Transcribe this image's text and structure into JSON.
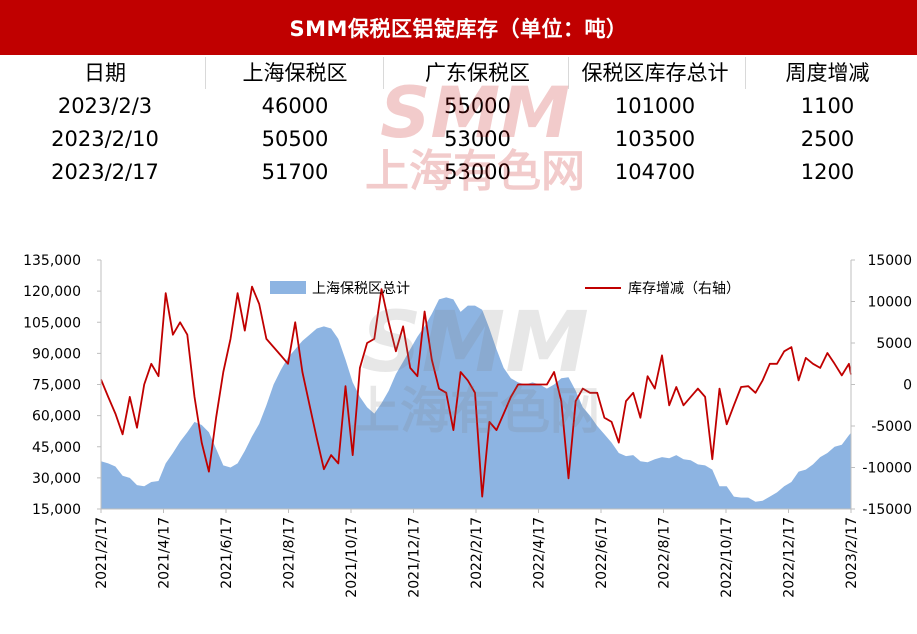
{
  "header": {
    "title": "SMM保税区铝锭库存（单位：吨）"
  },
  "table": {
    "columns": [
      "日期",
      "上海保税区",
      "广东保税区",
      "保税区库存总计",
      "周度增减"
    ],
    "rows": [
      [
        "2023/2/3",
        "46000",
        "55000",
        "101000",
        "1100"
      ],
      [
        "2023/2/10",
        "50500",
        "53000",
        "103500",
        "2500"
      ],
      [
        "2023/2/17",
        "51700",
        "53000",
        "104700",
        "1200"
      ]
    ]
  },
  "watermark": {
    "logo": "SMM",
    "text": "上海有色网"
  },
  "colors": {
    "title_bg": "#c00000",
    "area": "#8db4e2",
    "line": "#c00000"
  },
  "chart_data": {
    "type": "area+line",
    "x_tick_labels": [
      "2021/2/17",
      "2021/4/17",
      "2021/6/17",
      "2021/8/17",
      "2021/10/17",
      "2021/12/17",
      "2022/2/17",
      "2022/4/17",
      "2022/6/17",
      "2022/8/17",
      "2022/10/17",
      "2022/12/17",
      "2023/2/17"
    ],
    "x_range": [
      "2021-02-17",
      "2023-02-17"
    ],
    "left_axis": {
      "ticks": [
        "15,000",
        "30,000",
        "45,000",
        "60,000",
        "75,000",
        "90,000",
        "105,000",
        "120,000",
        "135,000"
      ],
      "ylim": [
        15000,
        135000
      ]
    },
    "right_axis": {
      "ticks": [
        "-15000",
        "-10000",
        "-5000",
        "0",
        "5000",
        "10000",
        "15000"
      ],
      "ylim": [
        -15000,
        15000
      ]
    },
    "legend_position": "top",
    "grid": false,
    "series": [
      {
        "name": "上海保税区总计",
        "type": "area",
        "axis": "left",
        "points": [
          [
            "2021-02-17",
            38000
          ],
          [
            "2021-02-24",
            37000
          ],
          [
            "2021-03-03",
            35500
          ],
          [
            "2021-03-10",
            31000
          ],
          [
            "2021-03-17",
            30000
          ],
          [
            "2021-03-24",
            26500
          ],
          [
            "2021-03-31",
            26000
          ],
          [
            "2021-04-07",
            28000
          ],
          [
            "2021-04-14",
            28500
          ],
          [
            "2021-04-21",
            37000
          ],
          [
            "2021-04-28",
            42000
          ],
          [
            "2021-05-05",
            47500
          ],
          [
            "2021-05-12",
            52000
          ],
          [
            "2021-05-19",
            57000
          ],
          [
            "2021-05-26",
            55500
          ],
          [
            "2021-06-02",
            52000
          ],
          [
            "2021-06-09",
            44000
          ],
          [
            "2021-06-16",
            36000
          ],
          [
            "2021-06-23",
            35000
          ],
          [
            "2021-06-30",
            37000
          ],
          [
            "2021-07-07",
            43000
          ],
          [
            "2021-07-14",
            50000
          ],
          [
            "2021-07-21",
            56000
          ],
          [
            "2021-07-28",
            65000
          ],
          [
            "2021-08-04",
            75000
          ],
          [
            "2021-08-11",
            82000
          ],
          [
            "2021-08-18",
            88000
          ],
          [
            "2021-08-25",
            92000
          ],
          [
            "2021-09-01",
            96000
          ],
          [
            "2021-09-08",
            99000
          ],
          [
            "2021-09-15",
            102000
          ],
          [
            "2021-09-22",
            103000
          ],
          [
            "2021-09-29",
            102000
          ],
          [
            "2021-10-06",
            97000
          ],
          [
            "2021-10-13",
            87000
          ],
          [
            "2021-10-20",
            76000
          ],
          [
            "2021-10-27",
            69000
          ],
          [
            "2021-11-03",
            64000
          ],
          [
            "2021-11-10",
            61000
          ],
          [
            "2021-11-17",
            66000
          ],
          [
            "2021-11-24",
            72000
          ],
          [
            "2021-12-01",
            80000
          ],
          [
            "2021-12-08",
            86000
          ],
          [
            "2021-12-15",
            92000
          ],
          [
            "2021-12-22",
            98000
          ],
          [
            "2021-12-29",
            103000
          ],
          [
            "2022-01-05",
            109000
          ],
          [
            "2022-01-12",
            116000
          ],
          [
            "2022-01-19",
            117000
          ],
          [
            "2022-01-26",
            116000
          ],
          [
            "2022-02-02",
            110000
          ],
          [
            "2022-02-09",
            113000
          ],
          [
            "2022-02-16",
            113000
          ],
          [
            "2022-02-23",
            111000
          ],
          [
            "2022-03-02",
            102000
          ],
          [
            "2022-03-09",
            92000
          ],
          [
            "2022-03-16",
            83000
          ],
          [
            "2022-03-23",
            78000
          ],
          [
            "2022-03-30",
            76000
          ],
          [
            "2022-04-06",
            75000
          ],
          [
            "2022-04-13",
            76000
          ],
          [
            "2022-04-20",
            75000
          ],
          [
            "2022-04-27",
            73000
          ],
          [
            "2022-05-04",
            75000
          ],
          [
            "2022-05-11",
            78000
          ],
          [
            "2022-05-18",
            78500
          ],
          [
            "2022-05-25",
            72000
          ],
          [
            "2022-06-01",
            64000
          ],
          [
            "2022-06-08",
            60000
          ],
          [
            "2022-06-15",
            55000
          ],
          [
            "2022-06-22",
            51000
          ],
          [
            "2022-06-29",
            47000
          ],
          [
            "2022-07-06",
            42000
          ],
          [
            "2022-07-13",
            40500
          ],
          [
            "2022-07-20",
            41000
          ],
          [
            "2022-07-27",
            38000
          ],
          [
            "2022-08-03",
            37500
          ],
          [
            "2022-08-10",
            39000
          ],
          [
            "2022-08-17",
            40000
          ],
          [
            "2022-08-24",
            39500
          ],
          [
            "2022-08-31",
            41000
          ],
          [
            "2022-09-07",
            39000
          ],
          [
            "2022-09-14",
            38500
          ],
          [
            "2022-09-21",
            36500
          ],
          [
            "2022-09-28",
            36000
          ],
          [
            "2022-10-05",
            34000
          ],
          [
            "2022-10-12",
            26000
          ],
          [
            "2022-10-19",
            26000
          ],
          [
            "2022-10-26",
            21000
          ],
          [
            "2022-11-02",
            20500
          ],
          [
            "2022-11-09",
            20500
          ],
          [
            "2022-11-16",
            18500
          ],
          [
            "2022-11-23",
            19000
          ],
          [
            "2022-11-30",
            21000
          ],
          [
            "2022-12-07",
            23000
          ],
          [
            "2022-12-14",
            26000
          ],
          [
            "2022-12-21",
            28000
          ],
          [
            "2022-12-28",
            33000
          ],
          [
            "2023-01-04",
            34000
          ],
          [
            "2023-01-11",
            36500
          ],
          [
            "2023-01-18",
            40000
          ],
          [
            "2023-01-25",
            42000
          ],
          [
            "2023-02-01",
            45000
          ],
          [
            "2023-02-08",
            46000
          ],
          [
            "2023-02-15",
            50500
          ],
          [
            "2023-02-17",
            51700
          ]
        ]
      },
      {
        "name": "库存增减（右轴）",
        "type": "line",
        "axis": "right",
        "points": [
          [
            "2021-02-17",
            600
          ],
          [
            "2021-02-24",
            -1500
          ],
          [
            "2021-03-03",
            -3500
          ],
          [
            "2021-03-10",
            -6000
          ],
          [
            "2021-03-17",
            -1500
          ],
          [
            "2021-03-24",
            -5200
          ],
          [
            "2021-03-31",
            0
          ],
          [
            "2021-04-07",
            2500
          ],
          [
            "2021-04-14",
            1000
          ],
          [
            "2021-04-21",
            11000
          ],
          [
            "2021-04-28",
            6000
          ],
          [
            "2021-05-05",
            7500
          ],
          [
            "2021-05-12",
            6000
          ],
          [
            "2021-05-19",
            -1500
          ],
          [
            "2021-05-26",
            -7000
          ],
          [
            "2021-06-02",
            -10500
          ],
          [
            "2021-06-09",
            -4000
          ],
          [
            "2021-06-16",
            1500
          ],
          [
            "2021-06-23",
            5500
          ],
          [
            "2021-06-30",
            11000
          ],
          [
            "2021-07-07",
            6500
          ],
          [
            "2021-07-14",
            11800
          ],
          [
            "2021-07-21",
            9700
          ],
          [
            "2021-07-28",
            5500
          ],
          [
            "2021-08-04",
            4500
          ],
          [
            "2021-08-11",
            3500
          ],
          [
            "2021-08-18",
            2500
          ],
          [
            "2021-08-25",
            7500
          ],
          [
            "2021-09-01",
            1500
          ],
          [
            "2021-09-08",
            -2500
          ],
          [
            "2021-09-15",
            -6500
          ],
          [
            "2021-09-22",
            -10200
          ],
          [
            "2021-09-29",
            -8500
          ],
          [
            "2021-10-06",
            -9500
          ],
          [
            "2021-10-13",
            -200
          ],
          [
            "2021-10-20",
            -8500
          ],
          [
            "2021-10-27",
            2000
          ],
          [
            "2021-11-03",
            5000
          ],
          [
            "2021-11-10",
            5500
          ],
          [
            "2021-11-17",
            11500
          ],
          [
            "2021-11-24",
            7500
          ],
          [
            "2021-12-01",
            4000
          ],
          [
            "2021-12-08",
            7000
          ],
          [
            "2021-12-15",
            2000
          ],
          [
            "2021-12-22",
            1000
          ],
          [
            "2021-12-29",
            8800
          ],
          [
            "2022-01-05",
            3000
          ],
          [
            "2022-01-12",
            -500
          ],
          [
            "2022-01-19",
            -1000
          ],
          [
            "2022-01-26",
            -5500
          ],
          [
            "2022-02-02",
            1500
          ],
          [
            "2022-02-09",
            500
          ],
          [
            "2022-02-16",
            -1000
          ],
          [
            "2022-02-23",
            -13500
          ],
          [
            "2022-03-02",
            -4500
          ],
          [
            "2022-03-09",
            -5500
          ],
          [
            "2022-03-16",
            -3500
          ],
          [
            "2022-03-23",
            -1500
          ],
          [
            "2022-03-30",
            0
          ],
          [
            "2022-04-06",
            0
          ],
          [
            "2022-04-13",
            0
          ],
          [
            "2022-04-20",
            0
          ],
          [
            "2022-04-27",
            0
          ],
          [
            "2022-05-04",
            1500
          ],
          [
            "2022-05-11",
            -2000
          ],
          [
            "2022-05-18",
            -11300
          ],
          [
            "2022-05-25",
            -2000
          ],
          [
            "2022-06-01",
            -500
          ],
          [
            "2022-06-08",
            -1000
          ],
          [
            "2022-06-15",
            -1000
          ],
          [
            "2022-06-22",
            -4000
          ],
          [
            "2022-06-29",
            -4500
          ],
          [
            "2022-07-06",
            -7000
          ],
          [
            "2022-07-13",
            -2000
          ],
          [
            "2022-07-20",
            -1000
          ],
          [
            "2022-07-27",
            -4000
          ],
          [
            "2022-08-03",
            1000
          ],
          [
            "2022-08-10",
            -500
          ],
          [
            "2022-08-17",
            3500
          ],
          [
            "2022-08-24",
            -2500
          ],
          [
            "2022-08-31",
            -300
          ],
          [
            "2022-09-07",
            -2500
          ],
          [
            "2022-09-14",
            -1500
          ],
          [
            "2022-09-21",
            -500
          ],
          [
            "2022-09-28",
            -1500
          ],
          [
            "2022-10-05",
            -9000
          ],
          [
            "2022-10-12",
            -500
          ],
          [
            "2022-10-19",
            -4800
          ],
          [
            "2022-10-26",
            -2500
          ],
          [
            "2022-11-02",
            -300
          ],
          [
            "2022-11-09",
            -200
          ],
          [
            "2022-11-16",
            -1000
          ],
          [
            "2022-11-23",
            500
          ],
          [
            "2022-11-30",
            2500
          ],
          [
            "2022-12-07",
            2500
          ],
          [
            "2022-12-14",
            4000
          ],
          [
            "2022-12-21",
            4500
          ],
          [
            "2022-12-28",
            500
          ],
          [
            "2023-01-04",
            3200
          ],
          [
            "2023-01-11",
            2500
          ],
          [
            "2023-01-18",
            2000
          ],
          [
            "2023-01-25",
            3800
          ],
          [
            "2023-02-01",
            2500
          ],
          [
            "2023-02-08",
            1100
          ],
          [
            "2023-02-15",
            2500
          ],
          [
            "2023-02-17",
            1200
          ]
        ]
      }
    ]
  }
}
